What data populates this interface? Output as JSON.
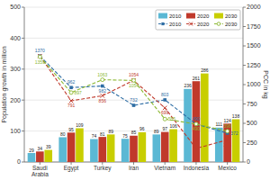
{
  "chart_data": {
    "type": "bar",
    "categories": [
      "Saudi\nArabia",
      "Egypt",
      "Turkey",
      "Iran",
      "Vietnam",
      "Indonesia",
      "Mexico"
    ],
    "y_label": "Population growth in million",
    "y2_label": "PCC in kg",
    "ylim": [
      0,
      500
    ],
    "yticks": [
      0,
      100,
      200,
      300,
      400,
      500
    ],
    "y2lim": [
      0,
      2000
    ],
    "y2ticks": [
      0,
      250,
      500,
      750,
      1000,
      1250,
      1500,
      1750,
      2000
    ],
    "grid": true,
    "legend": "upper right",
    "data_labels": true,
    "series": [
      {
        "name": "2010",
        "type": "bar",
        "color": "#5bb8d4",
        "values": [
          29,
          80,
          74,
          75,
          89,
          236,
          111
        ]
      },
      {
        "name": "2020",
        "type": "bar",
        "color": "#c0392b",
        "values": [
          34,
          95,
          81,
          85,
          97,
          261,
          124
        ]
      },
      {
        "name": "2030",
        "type": "bar",
        "color": "#c8ce00",
        "values": [
          39,
          109,
          89,
          96,
          106,
          286,
          138
        ]
      },
      {
        "name": "2010",
        "type": "line",
        "axis": "y2",
        "color": "#2e6da4",
        "line_style": "dashed",
        "marker": "square",
        "values": [
          1370,
          962,
          982,
          732,
          803,
          490,
          372
        ]
      },
      {
        "name": "2020",
        "type": "line",
        "axis": "y2",
        "color": "#c0392b",
        "line_style": "dashed",
        "marker": "x",
        "values": [
          1370,
          791,
          856,
          1054,
          699,
          175,
          286
        ],
        "value_labels": [
          null,
          "791",
          "856",
          "1054",
          "699",
          "175",
          "286"
        ]
      },
      {
        "name": "2030",
        "type": "line",
        "axis": "y2",
        "color": "#8bb830",
        "line_style": "dashed",
        "marker": "circle",
        "values": [
          1359,
          897,
          1063,
          1054,
          555,
          490,
          398
        ]
      }
    ]
  }
}
